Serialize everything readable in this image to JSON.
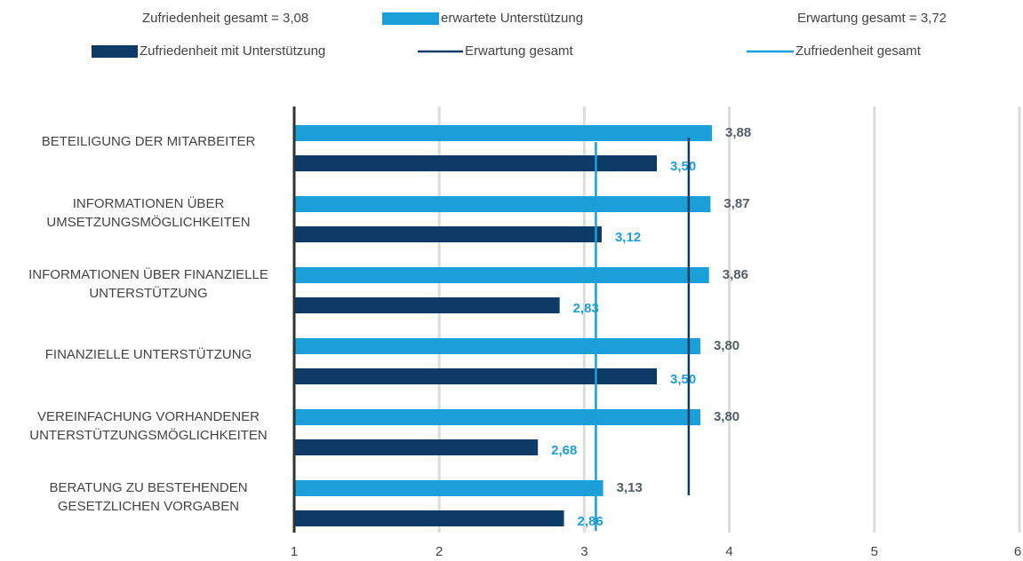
{
  "chart_data": {
    "type": "hbar",
    "categories": [
      "BETEILIGUNG DER MITARBEITER",
      "INFORMATIONEN ÜBER\nUMSETZUNGSMÖGLICHKEITEN",
      "INFORMATIONEN ÜBER FINANZIELLE\nUNTERSTÜTZUNG",
      "FINANZIELLE UNTERSTÜTZUNG",
      "VEREINFACHUNG VORHANDENER\nUNTERSTÜTZUNGSMÖGLICHKEITEN",
      "BERATUNG ZU BESTEHENDEN\nGESETZLICHEN VORGABEN"
    ],
    "series": [
      {
        "name": "erwartete Unterstützung",
        "color": "#1a9fd9",
        "label_color": "#555e68",
        "values": [
          3.88,
          3.87,
          3.86,
          3.8,
          3.8,
          3.13
        ],
        "value_labels": [
          "3,88",
          "3,87",
          "3,86",
          "3,80",
          "3,80",
          "3,13"
        ]
      },
      {
        "name": "Zufriedenheit mit Unterstützung",
        "color": "#0d3a66",
        "label_color": "#1a9fd9",
        "values": [
          3.5,
          3.12,
          2.83,
          3.5,
          2.68,
          2.86
        ],
        "value_labels": [
          "3,50",
          "3,12",
          "2,83",
          "3,50",
          "2,68",
          "2,86"
        ]
      }
    ],
    "reference_lines": [
      {
        "name": "Erwartung gesamt",
        "value": 3.72,
        "label": "Erwartung gesamt = 3,72",
        "color": "#0d3a66"
      },
      {
        "name": "Zufriedenheit gesamt",
        "value": 3.08,
        "label": "Zufriedenheit gesamt = 3,08",
        "color": "#1a9fd9"
      }
    ],
    "xlim": [
      1,
      6
    ],
    "xticks": [
      1,
      2,
      3,
      4,
      5,
      6
    ],
    "grid": true
  }
}
